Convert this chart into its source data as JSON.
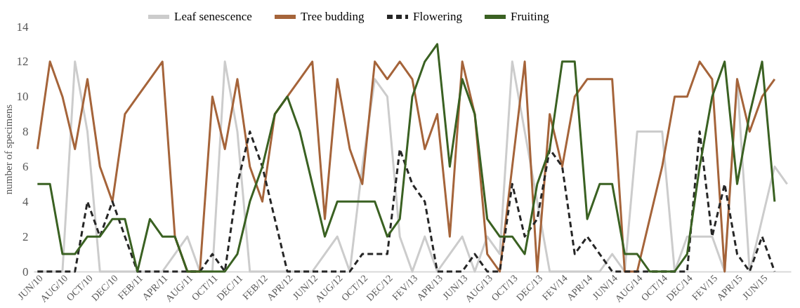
{
  "chart_data": {
    "type": "line",
    "ylabel": "number of specimens",
    "categories": [
      "JUN/10",
      null,
      "AUG/10",
      null,
      "OCT/10",
      null,
      "DEC/10",
      null,
      "FEB/11",
      null,
      "APR/11",
      null,
      "AUG/11",
      null,
      "OCT/11",
      null,
      "DEC/11",
      null,
      "FEB/12",
      null,
      "APR/12",
      null,
      "JUN/12",
      null,
      "AUG/12",
      null,
      "OCT/12",
      null,
      "DEC/12",
      null,
      "FEV/13",
      null,
      "APR/13",
      null,
      "JUN/13",
      null,
      "AUG/13",
      null,
      "OCT/13",
      null,
      "DEC/13",
      null,
      "FEV/14",
      null,
      "APR/14",
      null,
      "JUN/14",
      null,
      "AUG/14",
      null,
      "OCT/14",
      null,
      "DEC/14",
      null,
      "FEV/15",
      null,
      "APR/15",
      null,
      "JUN/15",
      null,
      null
    ],
    "series": [
      {
        "name": "Leaf senescence",
        "color": "#cccccc",
        "line_style": "solid",
        "values": [
          0,
          0,
          0,
          12,
          8,
          0,
          0,
          0,
          0,
          0,
          0,
          1,
          2,
          0,
          0,
          12,
          8,
          0,
          0,
          0,
          0,
          0,
          0,
          1,
          2,
          0,
          6,
          11,
          10,
          2,
          0,
          2,
          0,
          1,
          2,
          0,
          2,
          1,
          12,
          8,
          4,
          0,
          0,
          0,
          0,
          0,
          1,
          0,
          8,
          8,
          8,
          0,
          2,
          2,
          2,
          0,
          11,
          0,
          3,
          6,
          5
        ]
      },
      {
        "name": "Tree budding",
        "color": "#a5643a",
        "line_style": "solid",
        "values": [
          7,
          12,
          10,
          7,
          11,
          6,
          4,
          9,
          10,
          11,
          12,
          2,
          0,
          0,
          10,
          7,
          11,
          6,
          4,
          9,
          10,
          11,
          12,
          3,
          11,
          7,
          5,
          12,
          11,
          12,
          11,
          7,
          9,
          2,
          12,
          9,
          1,
          0,
          6,
          12,
          0,
          9,
          6,
          10,
          11,
          11,
          11,
          0,
          0,
          3,
          6,
          10,
          10,
          12,
          11,
          0,
          11,
          8,
          10,
          11,
          null
        ]
      },
      {
        "name": "Flowering",
        "color": "#262626",
        "line_style": "dashed",
        "values": [
          0,
          0,
          0,
          0,
          4,
          2,
          4,
          2,
          0,
          0,
          0,
          0,
          0,
          0,
          1,
          0,
          5,
          8,
          6,
          3,
          0,
          0,
          0,
          0,
          0,
          0,
          1,
          1,
          1,
          7,
          5,
          4,
          0,
          0,
          0,
          1,
          0,
          0,
          5,
          2,
          3,
          7,
          6,
          1,
          2,
          1,
          0,
          0,
          0,
          0,
          0,
          0,
          0,
          8,
          2,
          5,
          1,
          0,
          2,
          0,
          null
        ]
      },
      {
        "name": "Fruiting",
        "color": "#3a6122",
        "line_style": "solid",
        "values": [
          5,
          5,
          1,
          1,
          2,
          2,
          3,
          3,
          0,
          3,
          2,
          2,
          0,
          0,
          0,
          0,
          1,
          4,
          6,
          9,
          10,
          8,
          5,
          2,
          4,
          4,
          4,
          4,
          2,
          3,
          10,
          12,
          13,
          6,
          11,
          9,
          3,
          2,
          2,
          1,
          5,
          7,
          12,
          12,
          3,
          5,
          5,
          1,
          1,
          0,
          0,
          0,
          1,
          6,
          10,
          12,
          5,
          9,
          12,
          4,
          null
        ]
      }
    ],
    "ylim": [
      0,
      14
    ],
    "yticks": [
      0,
      2,
      4,
      6,
      8,
      10,
      12,
      14
    ],
    "grid": false,
    "legend": "top",
    "marker": "none"
  }
}
